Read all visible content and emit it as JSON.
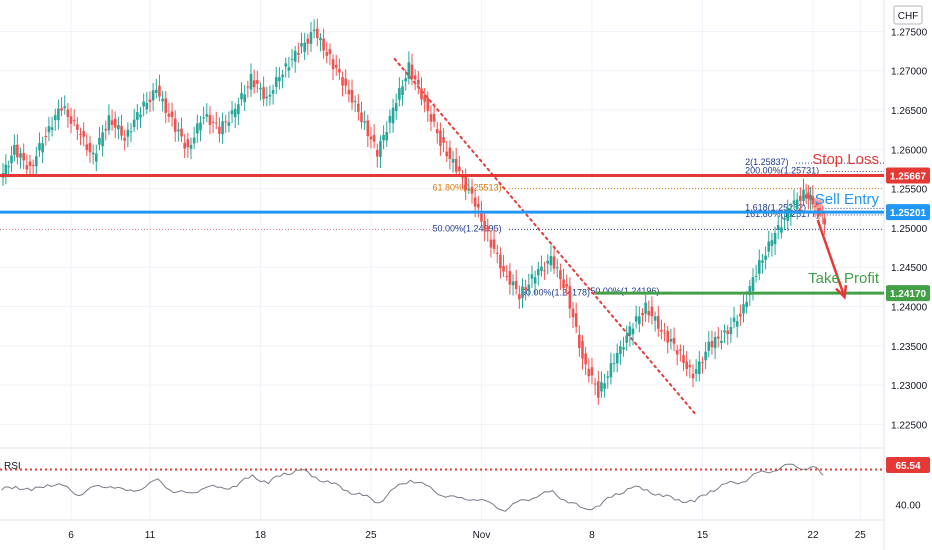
{
  "chart_data": {
    "type": "candlestick",
    "symbol_currency": "CHF",
    "currency_label": "CHF",
    "y_range": [
      1.222,
      1.279
    ],
    "price_ticks": [
      1.225,
      1.23,
      1.235,
      1.24,
      1.245,
      1.25,
      1.255,
      1.26,
      1.265,
      1.27,
      1.275
    ],
    "price_tick_labels": [
      "1.22500",
      "1.23000",
      "1.23500",
      "1.24000",
      "1.24500",
      "1.25000",
      "1.25500",
      "1.26000",
      "1.26500",
      "1.27000",
      "1.27500"
    ],
    "date_labels": [
      {
        "label": "6",
        "day": 6
      },
      {
        "label": "11",
        "day": 11
      },
      {
        "label": "18",
        "day": 18
      },
      {
        "label": "25",
        "day": 25
      },
      {
        "label": "Nov",
        "day": 32
      },
      {
        "label": "8",
        "day": 39
      },
      {
        "label": "15",
        "day": 46
      },
      {
        "label": "22",
        "day": 53
      },
      {
        "label": "25",
        "day": 56
      }
    ],
    "x_range_days": [
      1.5,
      57.5
    ],
    "price_path": [
      [
        1.6,
        1.256
      ],
      [
        2.5,
        1.26
      ],
      [
        3.5,
        1.2575
      ],
      [
        4.5,
        1.262
      ],
      [
        5.5,
        1.2655
      ],
      [
        6.5,
        1.2625
      ],
      [
        7.5,
        1.259
      ],
      [
        8.5,
        1.264
      ],
      [
        9.5,
        1.2615
      ],
      [
        10.5,
        1.265
      ],
      [
        11.5,
        1.2675
      ],
      [
        12.5,
        1.2635
      ],
      [
        13.5,
        1.26
      ],
      [
        14.5,
        1.2645
      ],
      [
        15.5,
        1.2625
      ],
      [
        16.5,
        1.265
      ],
      [
        17.5,
        1.269
      ],
      [
        18.5,
        1.2665
      ],
      [
        19.5,
        1.27
      ],
      [
        20.5,
        1.2725
      ],
      [
        21.5,
        1.275
      ],
      [
        22.5,
        1.2715
      ],
      [
        23.5,
        1.268
      ],
      [
        24.5,
        1.264
      ],
      [
        25.5,
        1.2595
      ],
      [
        26.5,
        1.265
      ],
      [
        27.5,
        1.2705
      ],
      [
        28.5,
        1.266
      ],
      [
        29.5,
        1.261
      ],
      [
        30.5,
        1.2575
      ],
      [
        31.5,
        1.254
      ],
      [
        32.5,
        1.249
      ],
      [
        33.5,
        1.2445
      ],
      [
        34.5,
        1.2415
      ],
      [
        35.5,
        1.244
      ],
      [
        36.5,
        1.246
      ],
      [
        37.5,
        1.242
      ],
      [
        38.5,
        1.2335
      ],
      [
        39.5,
        1.229
      ],
      [
        40.5,
        1.233
      ],
      [
        41.5,
        1.237
      ],
      [
        42.5,
        1.24
      ],
      [
        43.5,
        1.237
      ],
      [
        44.5,
        1.2345
      ],
      [
        45.5,
        1.231
      ],
      [
        46.5,
        1.235
      ],
      [
        47.5,
        1.2365
      ],
      [
        48.5,
        1.239
      ],
      [
        49.5,
        1.2445
      ],
      [
        50.5,
        1.2485
      ],
      [
        51.5,
        1.252
      ],
      [
        52.5,
        1.2545
      ],
      [
        53.2,
        1.253
      ],
      [
        53.8,
        1.251
      ]
    ],
    "horizontal_levels": [
      {
        "name": "Stop Loss",
        "price": 1.25667,
        "label": "1.25667",
        "color": "#e53935"
      },
      {
        "name": "Sell Entry",
        "price": 1.25201,
        "label": "1.25201",
        "color": "#2196f3"
      },
      {
        "name": "Take Profit",
        "price": 1.2417,
        "label": "1.24170",
        "color": "#43a047"
      }
    ],
    "fib_labels": [
      {
        "text": "2(1.25837)",
        "price": 1.25837,
        "day": 48.7,
        "color": "#1e3a8a"
      },
      {
        "text": "200.00%(1.25731)",
        "price": 1.25731,
        "day": 48.7,
        "color": "#1e3a8a"
      },
      {
        "text": "61.80%(1.25513)",
        "price": 1.25513,
        "day": 28.9,
        "color": "#d97706"
      },
      {
        "text": "1.618(1.25262)",
        "price": 1.25262,
        "day": 48.7,
        "color": "#1e3a8a"
      },
      {
        "text": "161.80%(1.25177)",
        "price": 1.25177,
        "day": 48.7,
        "color": "#1e3a8a"
      },
      {
        "text": "50.00%(1.24995)",
        "price": 1.24995,
        "day": 28.9,
        "color": "#1e3a8a"
      },
      {
        "text": "50.00%(1.24178)",
        "price": 1.24178,
        "day": 34.5,
        "color": "#1e3a8a"
      },
      {
        "text": "50.00%(1.24196)",
        "price": 1.24196,
        "day": 38.9,
        "color": "#1e3a8a"
      }
    ],
    "trendline": {
      "from": [
        26.5,
        1.2715
      ],
      "to": [
        45.6,
        1.2262
      ],
      "color": "#e53935"
    },
    "projection_arrow": {
      "from": [
        53.3,
        1.251
      ],
      "to": [
        55.0,
        1.2412
      ],
      "color": "#e53935"
    },
    "rsi": {
      "label": "RSI",
      "value_label": "65.54",
      "level_label": "40.00",
      "value": 65.54,
      "level": 40,
      "overbought": 70,
      "range": [
        30,
        85
      ],
      "values": [
        [
          1.6,
          52
        ],
        [
          2.5,
          56
        ],
        [
          3.5,
          51
        ],
        [
          4.5,
          58
        ],
        [
          5.5,
          55
        ],
        [
          6.5,
          49
        ],
        [
          7.5,
          54
        ],
        [
          8.5,
          57
        ],
        [
          9.5,
          50
        ],
        [
          10.5,
          55
        ],
        [
          11.5,
          60
        ],
        [
          12.5,
          52
        ],
        [
          13.5,
          48
        ],
        [
          14.5,
          56
        ],
        [
          15.5,
          53
        ],
        [
          16.5,
          57
        ],
        [
          17.5,
          64
        ],
        [
          18.5,
          59
        ],
        [
          19.5,
          66
        ],
        [
          20.5,
          70
        ],
        [
          21.5,
          63
        ],
        [
          22.5,
          58
        ],
        [
          23.5,
          52
        ],
        [
          24.5,
          47
        ],
        [
          25.5,
          42
        ],
        [
          26.5,
          53
        ],
        [
          27.5,
          62
        ],
        [
          28.5,
          55
        ],
        [
          29.5,
          49
        ],
        [
          30.5,
          44
        ],
        [
          31.5,
          46
        ],
        [
          32.5,
          40
        ],
        [
          33.5,
          36
        ],
        [
          34.5,
          42
        ],
        [
          35.5,
          48
        ],
        [
          36.5,
          50
        ],
        [
          37.5,
          43
        ],
        [
          38.5,
          35
        ],
        [
          39.5,
          40
        ],
        [
          40.5,
          48
        ],
        [
          41.5,
          55
        ],
        [
          42.5,
          52
        ],
        [
          43.5,
          47
        ],
        [
          44.5,
          44
        ],
        [
          45.5,
          42
        ],
        [
          46.5,
          52
        ],
        [
          47.5,
          57
        ],
        [
          48.5,
          60
        ],
        [
          49.5,
          66
        ],
        [
          50.5,
          70
        ],
        [
          51.5,
          73
        ],
        [
          52.5,
          72
        ],
        [
          53.2,
          70
        ],
        [
          53.8,
          66
        ]
      ]
    },
    "annotation_labels": [
      {
        "text": "Stop Loss",
        "price": 1.2588,
        "color": "#e53935"
      },
      {
        "text": "Sell Entry",
        "price": 1.2537,
        "color": "#2196f3"
      },
      {
        "text": "Take Profit",
        "price": 1.2436,
        "color": "#43a047"
      }
    ]
  }
}
